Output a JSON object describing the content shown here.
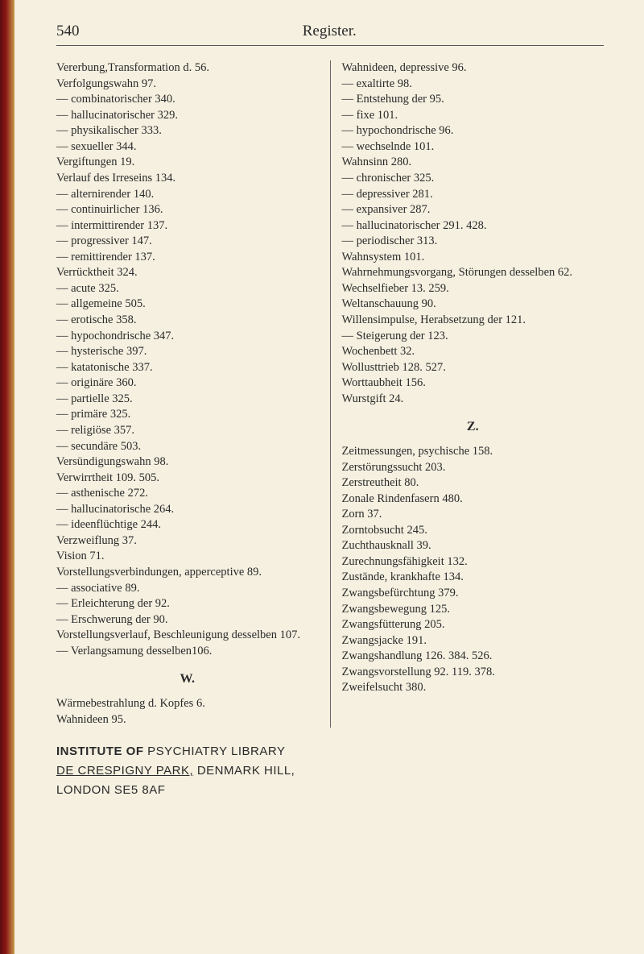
{
  "page_number": "540",
  "page_title": "Register.",
  "colors": {
    "background": "#f5f0e0",
    "text": "#2a2a2a",
    "rule": "#555",
    "spine1": "#5a0d0d",
    "spine2": "#8a1515",
    "spine3": "#c89a4a"
  },
  "left_column": [
    "Vererbung,Transformation d. 56.",
    "Verfolgungswahn 97.",
    "— combinatorischer 340.",
    "— hallucinatorischer 329.",
    "— physikalischer 333.",
    "— sexueller 344.",
    "Vergiftungen 19.",
    "Verlauf des Irreseins 134.",
    "— alternirender 140.",
    "— continuirlicher 136.",
    "— intermittirender 137.",
    "— progressiver 147.",
    "— remittirender 137.",
    "Verrücktheit 324.",
    "— acute 325.",
    "— allgemeine 505.",
    "— erotische 358.",
    "— hypochondrische 347.",
    "— hysterische 397.",
    "— katatonische 337.",
    "— originäre 360.",
    "— partielle 325.",
    "— primäre 325.",
    "— religiöse 357.",
    "— secundäre 503.",
    "Versündigungswahn 98.",
    "Verwirrtheit 109. 505.",
    "— asthenische 272.",
    "— hallucinatorische 264.",
    "— ideenflüchtige 244.",
    "Verzweiflung 37.",
    "Vision 71.",
    "Vorstellungsverbindungen, ap­perceptive 89.",
    "— associative 89.",
    "— Erleichterung der 92.",
    "— Erschwerung der 90.",
    "Vorstellungsverlauf, Beschleu­nigung desselben 107.",
    "— Verlangsamung desselben106."
  ],
  "left_section_head": "W.",
  "left_column_2": [
    "Wärmebestrahlung d. Kopfes 6.",
    "Wahnideen 95."
  ],
  "right_column": [
    "Wahnideen, depressive 96.",
    "— exaltirte 98.",
    "— Entstehung der 95.",
    "— fixe 101.",
    "— hypochondrische 96.",
    "— wechselnde 101.",
    "Wahnsinn 280.",
    "— chronischer 325.",
    "— depressiver 281.",
    "— expansiver 287.",
    "— hallucinatorischer 291. 428.",
    "— periodischer 313.",
    "Wahnsystem 101.",
    "Wahrnehmungsvorgang, Stör­ungen desselben 62.",
    "Wechselfieber 13. 259.",
    "Weltanschauung 90.",
    "Willensimpulse, Herabsetzung der 121.",
    "— Steigerung der 123.",
    "Wochenbett 32.",
    "Wollusttrieb 128. 527.",
    "Worttaubheit 156.",
    "Wurstgift 24."
  ],
  "right_section_head": "Z.",
  "right_column_2": [
    "Zeitmessungen, psychische 158.",
    "Zerstörungssucht 203.",
    "Zerstreutheit 80.",
    "Zonale Rindenfasern 480.",
    "Zorn 37.",
    "Zorntobsucht 245.",
    "Zuchthausknall 39.",
    "Zurechnungsfähigkeit 132.",
    "Zustände, krankhafte 134.",
    "Zwangsbefürchtung 379.",
    "Zwangsbewegung 125.",
    "Zwangsfütterung 205.",
    "Zwangsjacke 191.",
    "Zwangshandlung 126. 384. 526.",
    "Zwangsvorstellung 92. 119. 378.",
    "Zweifelsucht 380."
  ],
  "footer": {
    "line1_a": "INSTITUTE OF ",
    "line1_b": "PSYCHIATRY LIBRARY",
    "line2_a": "DE CRESPIGNY PARK,",
    "line2_b": " DENMARK HILL,",
    "line3": "LONDON SE5 8AF"
  }
}
